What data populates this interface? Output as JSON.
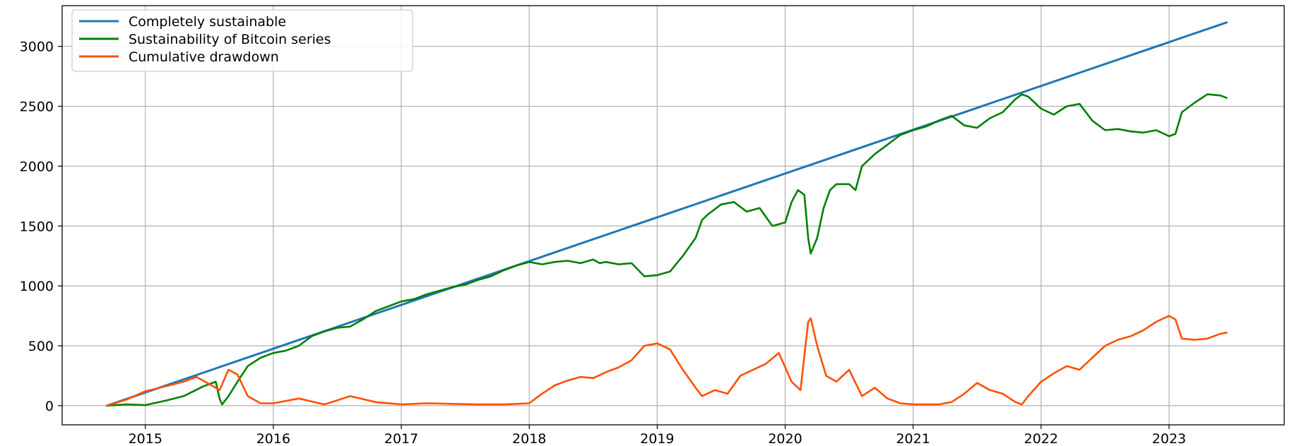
{
  "chart_data": {
    "type": "line",
    "title": "",
    "xlabel": "",
    "ylabel": "",
    "xlim": [
      2014.35,
      2023.9
    ],
    "ylim": [
      -160,
      3340
    ],
    "x_ticks": [
      2015,
      2016,
      2017,
      2018,
      2019,
      2020,
      2021,
      2022,
      2023
    ],
    "y_ticks": [
      0,
      500,
      1000,
      1500,
      2000,
      2500,
      3000
    ],
    "grid": true,
    "legend_position": "upper-left",
    "series": [
      {
        "name": "Completely sustainable",
        "color": "#1f77b4",
        "x": [
          2014.7,
          2023.45
        ],
        "y": [
          0,
          3200
        ]
      },
      {
        "name": "Sustainability of Bitcoin series",
        "color": "#008000",
        "x": [
          2014.7,
          2014.85,
          2015.0,
          2015.15,
          2015.3,
          2015.45,
          2015.55,
          2015.58,
          2015.6,
          2015.65,
          2015.72,
          2015.8,
          2015.9,
          2016.0,
          2016.1,
          2016.2,
          2016.3,
          2016.4,
          2016.5,
          2016.6,
          2016.7,
          2016.8,
          2016.9,
          2017.0,
          2017.1,
          2017.2,
          2017.3,
          2017.4,
          2017.5,
          2017.6,
          2017.7,
          2017.8,
          2017.9,
          2018.0,
          2018.1,
          2018.2,
          2018.3,
          2018.4,
          2018.5,
          2018.55,
          2018.6,
          2018.7,
          2018.8,
          2018.9,
          2019.0,
          2019.1,
          2019.2,
          2019.3,
          2019.35,
          2019.4,
          2019.5,
          2019.6,
          2019.7,
          2019.8,
          2019.9,
          2020.0,
          2020.05,
          2020.1,
          2020.15,
          2020.18,
          2020.2,
          2020.25,
          2020.3,
          2020.35,
          2020.4,
          2020.5,
          2020.55,
          2020.6,
          2020.7,
          2020.8,
          2020.9,
          2021.0,
          2021.1,
          2021.2,
          2021.3,
          2021.4,
          2021.5,
          2021.6,
          2021.7,
          2021.8,
          2021.85,
          2021.9,
          2022.0,
          2022.1,
          2022.2,
          2022.3,
          2022.4,
          2022.5,
          2022.6,
          2022.7,
          2022.8,
          2022.9,
          2023.0,
          2023.05,
          2023.1,
          2023.2,
          2023.3,
          2023.4,
          2023.45
        ],
        "y": [
          0,
          10,
          5,
          40,
          80,
          160,
          200,
          60,
          10,
          80,
          200,
          330,
          400,
          440,
          460,
          500,
          580,
          620,
          650,
          660,
          720,
          790,
          830,
          870,
          890,
          930,
          960,
          990,
          1010,
          1050,
          1080,
          1130,
          1170,
          1200,
          1180,
          1200,
          1210,
          1190,
          1220,
          1190,
          1200,
          1180,
          1190,
          1080,
          1090,
          1120,
          1250,
          1400,
          1550,
          1600,
          1680,
          1700,
          1620,
          1650,
          1500,
          1530,
          1700,
          1800,
          1760,
          1400,
          1270,
          1400,
          1650,
          1800,
          1850,
          1850,
          1800,
          2000,
          2100,
          2180,
          2260,
          2300,
          2330,
          2380,
          2420,
          2340,
          2320,
          2400,
          2450,
          2560,
          2600,
          2580,
          2480,
          2430,
          2500,
          2520,
          2380,
          2300,
          2310,
          2290,
          2280,
          2300,
          2250,
          2270,
          2450,
          2530,
          2600,
          2590,
          2570
        ]
      },
      {
        "name": "Cumulative drawdown",
        "color": "#ff5000",
        "x": [
          2014.7,
          2014.85,
          2015.0,
          2015.15,
          2015.3,
          2015.4,
          2015.5,
          2015.58,
          2015.65,
          2015.72,
          2015.8,
          2015.9,
          2016.0,
          2016.2,
          2016.4,
          2016.6,
          2016.8,
          2017.0,
          2017.2,
          2017.4,
          2017.6,
          2017.8,
          2018.0,
          2018.1,
          2018.2,
          2018.3,
          2018.4,
          2018.5,
          2018.6,
          2018.7,
          2018.8,
          2018.9,
          2019.0,
          2019.1,
          2019.2,
          2019.3,
          2019.35,
          2019.45,
          2019.55,
          2019.65,
          2019.75,
          2019.85,
          2019.95,
          2020.05,
          2020.12,
          2020.18,
          2020.2,
          2020.25,
          2020.32,
          2020.4,
          2020.5,
          2020.6,
          2020.7,
          2020.8,
          2020.9,
          2021.0,
          2021.2,
          2021.3,
          2021.4,
          2021.5,
          2021.6,
          2021.7,
          2021.8,
          2021.85,
          2021.9,
          2022.0,
          2022.1,
          2022.2,
          2022.3,
          2022.4,
          2022.5,
          2022.6,
          2022.7,
          2022.8,
          2022.9,
          2023.0,
          2023.05,
          2023.1,
          2023.2,
          2023.3,
          2023.4,
          2023.45
        ],
        "y": [
          0,
          50,
          120,
          160,
          200,
          240,
          180,
          130,
          300,
          260,
          80,
          20,
          20,
          60,
          10,
          80,
          30,
          10,
          20,
          15,
          10,
          10,
          20,
          100,
          170,
          210,
          240,
          230,
          280,
          320,
          380,
          500,
          520,
          470,
          300,
          150,
          80,
          130,
          100,
          250,
          300,
          350,
          440,
          200,
          130,
          700,
          730,
          500,
          250,
          200,
          300,
          80,
          150,
          60,
          20,
          10,
          10,
          30,
          100,
          190,
          130,
          100,
          30,
          10,
          80,
          200,
          270,
          330,
          300,
          400,
          500,
          550,
          580,
          630,
          700,
          750,
          720,
          560,
          550,
          560,
          600,
          610
        ]
      }
    ]
  }
}
